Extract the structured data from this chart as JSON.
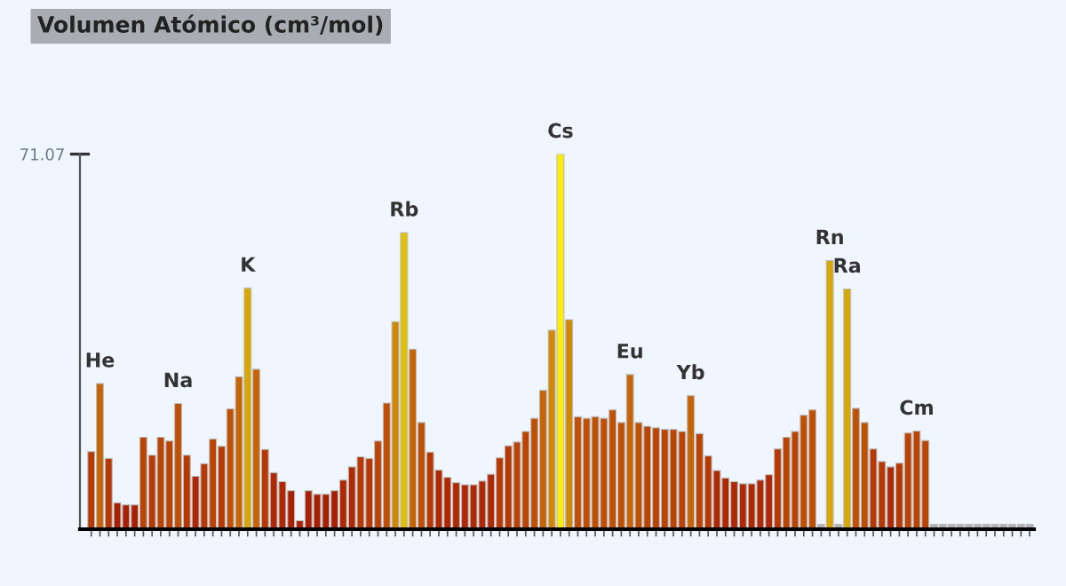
{
  "chart_data": {
    "type": "bar",
    "title": "Volumen Atómico (cm³/mol)",
    "categories": [
      null,
      null,
      null,
      null,
      null,
      null,
      null,
      null,
      null,
      null,
      null,
      null,
      null,
      null,
      null,
      null,
      null,
      null,
      null,
      null,
      null,
      null,
      null,
      null,
      null,
      null,
      null,
      null,
      null,
      null,
      null,
      null,
      null,
      null,
      null,
      null,
      null,
      null,
      null,
      null,
      null,
      null,
      null,
      null,
      null,
      null,
      null,
      null,
      null,
      null,
      null,
      null,
      null,
      null,
      null,
      null,
      null,
      null,
      null,
      null,
      null,
      null,
      null,
      null,
      null,
      null,
      null,
      null,
      null,
      null,
      null,
      null,
      null,
      null,
      null,
      null,
      null,
      null,
      null,
      null,
      null,
      null,
      null,
      null,
      null,
      null,
      null,
      null,
      null,
      null,
      null,
      null,
      null,
      null,
      null,
      null,
      null,
      null,
      null,
      null,
      null,
      null,
      null,
      null,
      null,
      null,
      null,
      null,
      null
    ],
    "values": [
      14.7,
      27.6,
      13.4,
      5.0,
      4.6,
      4.6,
      17.4,
      14.0,
      17.4,
      16.7,
      23.8,
      14.0,
      10.0,
      12.4,
      17.1,
      15.7,
      22.8,
      28.9,
      45.7,
      30.3,
      15.1,
      10.7,
      9.0,
      7.3,
      1.6,
      7.3,
      6.6,
      6.6,
      7.3,
      9.3,
      11.8,
      13.7,
      13.4,
      16.7,
      23.9,
      39.3,
      56.2,
      34.1,
      20.2,
      14.6,
      11.2,
      9.8,
      8.8,
      8.4,
      8.4,
      9.1,
      10.4,
      13.5,
      15.8,
      16.5,
      18.5,
      21.0,
      26.3,
      37.7,
      71.07,
      39.7,
      21.3,
      21.0,
      21.3,
      21.0,
      22.6,
      20.2,
      29.3,
      20.2,
      19.5,
      19.2,
      18.9,
      18.9,
      18.5,
      25.3,
      18.1,
      13.9,
      11.1,
      9.7,
      9.0,
      8.6,
      8.6,
      9.3,
      10.3,
      15.2,
      17.4,
      18.5,
      21.6,
      22.6,
      0.9,
      50.9,
      0.9,
      45.5,
      22.9,
      20.2,
      15.2,
      12.8,
      11.8,
      12.5,
      18.2,
      18.6,
      16.8,
      0.9,
      0.9,
      0.9,
      0.9,
      0.9,
      0.9,
      0.9,
      0.9,
      0.9,
      0.9,
      0.9,
      0.9
    ],
    "colors": [
      "#b83800",
      "#c86400",
      "#b83800",
      "#a82000",
      "#a82000",
      "#a82000",
      "#bb4400",
      "#b83800",
      "#bb4400",
      "#bb4400",
      "#c05000",
      "#b83800",
      "#b02800",
      "#b83800",
      "#bb4400",
      "#b83800",
      "#c05000",
      "#c86400",
      "#d8a800",
      "#c86400",
      "#b83800",
      "#b02800",
      "#b02800",
      "#a82000",
      "#a82000",
      "#a82000",
      "#a82000",
      "#a82000",
      "#a82000",
      "#b02800",
      "#b02800",
      "#b83800",
      "#b83800",
      "#bb4400",
      "#c05000",
      "#d08800",
      "#e0c000",
      "#c86400",
      "#c05000",
      "#b83800",
      "#b02800",
      "#b02800",
      "#b02800",
      "#b02800",
      "#b02800",
      "#b02800",
      "#b02800",
      "#b83800",
      "#b83800",
      "#bb4400",
      "#bb4400",
      "#c05000",
      "#c86400",
      "#d08800",
      "#ffee00",
      "#d08800",
      "#c05000",
      "#c05000",
      "#c05000",
      "#c05000",
      "#c05000",
      "#c05000",
      "#c86400",
      "#c05000",
      "#bb4400",
      "#bb4400",
      "#bb4400",
      "#bb4400",
      "#bb4400",
      "#c86400",
      "#bb4400",
      "#b83800",
      "#b02800",
      "#b02800",
      "#b02800",
      "#b02800",
      "#b02800",
      "#b02800",
      "#b02800",
      "#b83800",
      "#bb4400",
      "#bb4400",
      "#c05000",
      "#c05000",
      "#b0b0b0",
      "#d8a800",
      "#b0b0b0",
      "#d8a800",
      "#c05000",
      "#c05000",
      "#b83800",
      "#b83800",
      "#b02800",
      "#b83800",
      "#bb4400",
      "#bb4400",
      "#bb4400",
      "#b0b0b0",
      "#b0b0b0",
      "#b0b0b0",
      "#b0b0b0",
      "#b0b0b0",
      "#b0b0b0",
      "#b0b0b0",
      "#b0b0b0",
      "#b0b0b0",
      "#b0b0b0",
      "#b0b0b0",
      "#b0b0b0"
    ],
    "ylim": [
      0,
      71.07
    ],
    "yticks": [
      71.07
    ],
    "tick_labels": "y",
    "annotations": [
      {
        "text": "He",
        "y": 27.6
      },
      {
        "text": "Na",
        "y": 23.8
      },
      {
        "text": "K",
        "y": 45.7
      },
      {
        "text": "Rb",
        "y": 56.2
      },
      {
        "text": "Cs",
        "y": 71.07
      },
      {
        "text": "Eu",
        "y": 29.3
      },
      {
        "text": "Yb",
        "y": 25.3
      },
      {
        "text": "Rn",
        "y": 50.9
      },
      {
        "text": "Ra",
        "y": 45.5
      },
      {
        "text": "Cm",
        "y": 18.6
      }
    ]
  }
}
